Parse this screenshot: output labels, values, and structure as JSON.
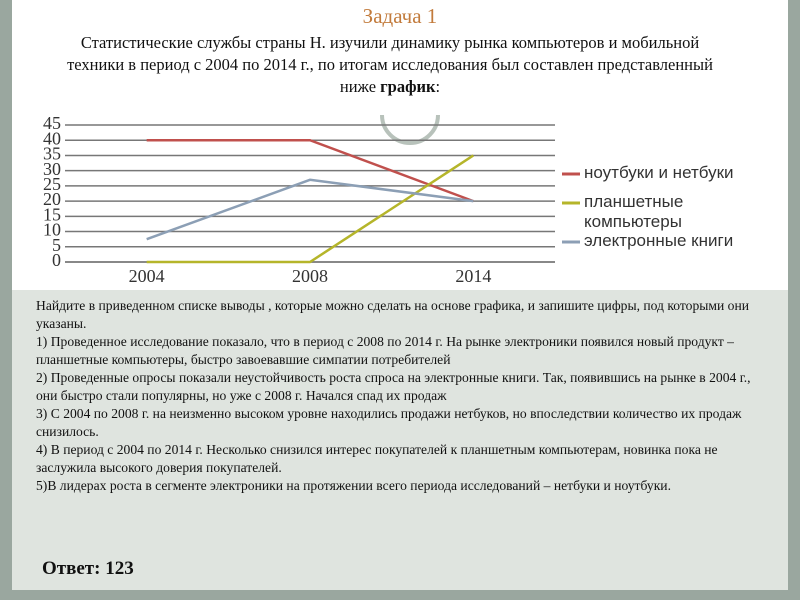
{
  "slide": {
    "title": "Задача 1",
    "intro": [
      "Статистические службы страны Н. изучили динамику рынка компьютеров и мобильной техники в период с 2004 по 2014 г., по итогам исследования был составлен представленный ниже ",
      "график",
      ":"
    ],
    "question": "Найдите в приведенном списке выводы , которые можно сделать на основе графика, и запишите цифры, под которыми они указаны.",
    "options": [
      "1) Проведенное исследование показало, что в период с 2008 по 2014 г. На рынке электроники появился новый продукт – планшетные компьютеры, быстро завоевавшие симпатии потребителей",
      "2) Проведенные опросы показали неустойчивость роста спроса на электронные книги. Так, появившись на рынке в 2004 г., они быстро стали популярны, но уже с 2008 г. Начался спад их продаж",
      "3) С 2004 по 2008 г. на неизменно высоком уровне находились продажи нетбуков, но впоследствии количество их продаж снизилось.",
      "4) В период с 2004 по 2014 г. Несколько снизился интерес покупателей к планшетным компьютерам, новинка пока не заслужила высокого доверия покупателей.",
      "5)В лидерах роста в сегменте электроники на протяжении всего периода исследований – нетбуки и ноутбуки."
    ],
    "answer": "Ответ: 123"
  },
  "chart_data": {
    "type": "line",
    "categories": [
      "2004",
      "2008",
      "2014"
    ],
    "series": [
      {
        "name": "ноутбуки и нетбуки",
        "color": "#c0504d",
        "values": [
          40,
          40,
          20
        ]
      },
      {
        "name": "планшетные компьютеры",
        "color": "#b5b52a",
        "values": [
          0,
          0,
          35
        ]
      },
      {
        "name": "электронные книги",
        "color": "#8c9fb5",
        "values": [
          7.5,
          27,
          20
        ]
      }
    ],
    "ylim": [
      0,
      45
    ],
    "yticks": [
      0,
      5,
      10,
      15,
      20,
      25,
      30,
      35,
      40,
      45
    ],
    "grid": true
  }
}
